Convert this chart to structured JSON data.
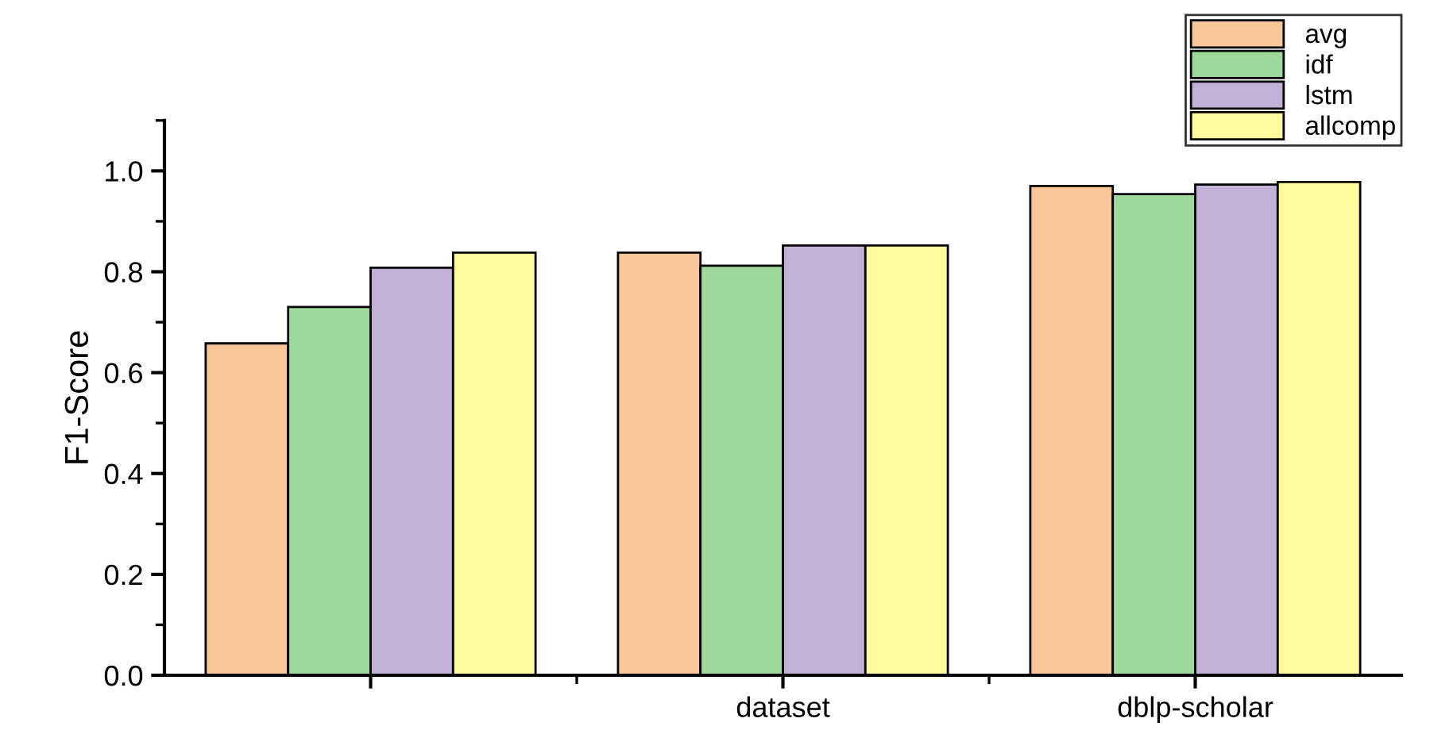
{
  "chart_data": {
    "type": "bar",
    "ylabel": "F1-Score",
    "categories": [
      null,
      "dataset",
      "dblp-scholar"
    ],
    "series": [
      {
        "name": "avg",
        "color": "#f9c797",
        "values": [
          0.658,
          0.838,
          0.97
        ]
      },
      {
        "name": "idf",
        "color": "#9ed89b",
        "values": [
          0.73,
          0.812,
          0.954
        ]
      },
      {
        "name": "lstm",
        "color": "#c2b0d6",
        "values": [
          0.808,
          0.852,
          0.973
        ]
      },
      {
        "name": "allcomp",
        "color": "#fdfb9b",
        "values": [
          0.838,
          0.852,
          0.978
        ]
      }
    ],
    "ylim": [
      0,
      1.1
    ],
    "yticks": [
      {
        "value": 0.0,
        "label": "0.0"
      },
      {
        "value": 0.2,
        "label": "0.2"
      },
      {
        "value": 0.4,
        "label": "0.4"
      },
      {
        "value": 0.6,
        "label": "0.6"
      },
      {
        "value": 0.8,
        "label": "0.8"
      },
      {
        "value": 1.0,
        "label": "1.0"
      }
    ],
    "grid": false,
    "legend": "top right"
  }
}
